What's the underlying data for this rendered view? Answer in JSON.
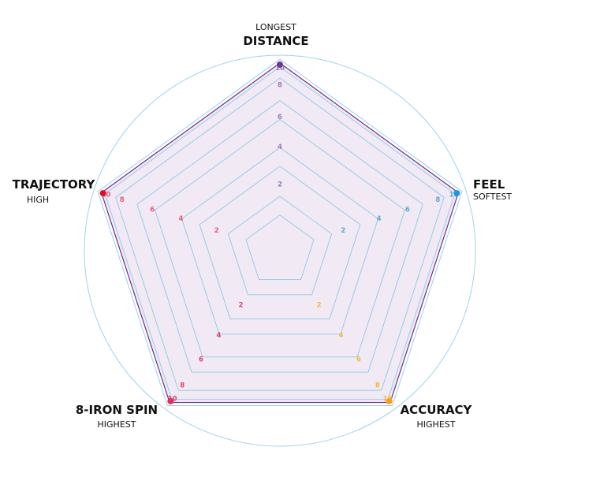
{
  "chart_data": {
    "type": "radar",
    "axes": [
      {
        "key": "distance",
        "title": "DISTANCE",
        "sub": "LONGEST",
        "color": "#9b7bb8",
        "dot": "#6b3c8e"
      },
      {
        "key": "feel",
        "title": "FEEL",
        "sub": "SOFTEST",
        "color": "#5fa8d3",
        "dot": "#2196d9"
      },
      {
        "key": "accuracy",
        "title": "ACCURACY",
        "sub": "HIGHEST",
        "color": "#f0b640",
        "dot": "#f2a21a"
      },
      {
        "key": "spin",
        "title": "8-IRON SPIN",
        "sub": "HIGHEST",
        "color": "#e0406a",
        "dot": "#e0315c"
      },
      {
        "key": "trajectory",
        "title": "TRAJECTORY",
        "sub": "HIGH",
        "color": "#e85a7a",
        "dot": "#d9102a"
      }
    ],
    "tick_values": [
      "2",
      "4",
      "6",
      "8",
      "10"
    ],
    "range": [
      0,
      10
    ],
    "series": [
      {
        "values": [
          10,
          10,
          10,
          10,
          10
        ]
      }
    ],
    "colors": {
      "ring": "#9fd4ea",
      "grid": "#8ec9e8",
      "fill": "#f1e9f4",
      "line": "#6b2f8a"
    }
  }
}
